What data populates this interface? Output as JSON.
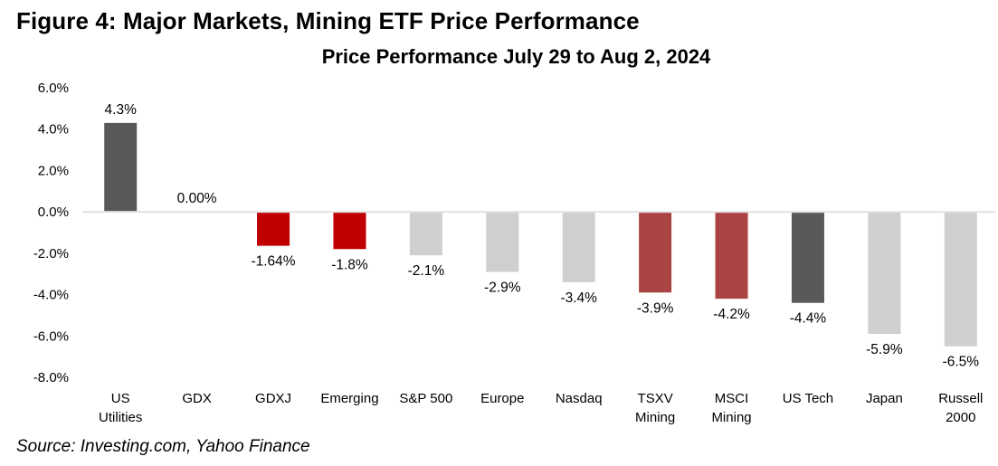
{
  "figure_title": "Figure 4: Major Markets, Mining ETF Price Performance",
  "source": "Source: Investing.com, Yahoo Finance",
  "colors": {
    "dark_gray": "#595959",
    "bright_red": "#c00000",
    "muted_red": "#a94442",
    "light_gray": "#d0cece",
    "axis_line": "#d9d9d9"
  },
  "chart_data": {
    "type": "bar",
    "title": "Price Performance July 29 to Aug 2, 2024",
    "xlabel": "",
    "ylabel": "",
    "ylim": [
      -8.0,
      6.0
    ],
    "yticks": [
      6.0,
      4.0,
      2.0,
      0.0,
      -2.0,
      -4.0,
      -6.0,
      -8.0
    ],
    "ytick_labels": [
      "6.0%",
      "4.0%",
      "2.0%",
      "0.0%",
      "-2.0%",
      "-4.0%",
      "-6.0%",
      "-8.0%"
    ],
    "grid": false,
    "legend": "none",
    "categories": [
      [
        "US",
        "Utilities"
      ],
      [
        "GDX"
      ],
      [
        "GDXJ"
      ],
      [
        "Emerging"
      ],
      [
        "S&P 500"
      ],
      [
        "Europe"
      ],
      [
        "Nasdaq"
      ],
      [
        "TSXV",
        "Mining"
      ],
      [
        "MSCI",
        "Mining"
      ],
      [
        "US Tech"
      ],
      [
        "Japan"
      ],
      [
        "Russell",
        "2000"
      ]
    ],
    "values": [
      4.3,
      0.0,
      -1.64,
      -1.8,
      -2.1,
      -2.9,
      -3.4,
      -3.9,
      -4.2,
      -4.4,
      -5.9,
      -6.5
    ],
    "data_labels": [
      "4.3%",
      "0.00%",
      "-1.64%",
      "-1.8%",
      "-2.1%",
      "-2.9%",
      "-3.4%",
      "-3.9%",
      "-4.2%",
      "-4.4%",
      "-5.9%",
      "-6.5%"
    ],
    "bar_colors": [
      "dark_gray",
      "bright_red",
      "bright_red",
      "bright_red",
      "light_gray",
      "light_gray",
      "light_gray",
      "muted_red",
      "muted_red",
      "dark_gray",
      "light_gray",
      "light_gray"
    ]
  }
}
